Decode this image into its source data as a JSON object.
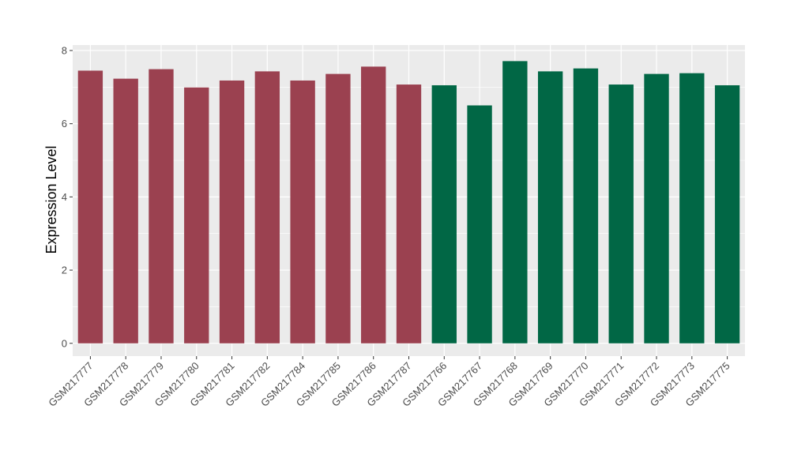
{
  "chart_data": {
    "type": "bar",
    "title": "",
    "xlabel": "",
    "ylabel": "Expression Level",
    "ylim": [
      -0.35,
      8.15
    ],
    "yticks": [
      0,
      2,
      4,
      6,
      8
    ],
    "grid": true,
    "legend": "none",
    "colors": {
      "panel_bg": "#ebebeb",
      "grid_major": "#ffffff",
      "group1": "#9b4150",
      "group2": "#016745",
      "tick_text": "#4d4d4d"
    },
    "categories": [
      "GSM217777",
      "GSM217778",
      "GSM217779",
      "GSM217780",
      "GSM217781",
      "GSM217782",
      "GSM217784",
      "GSM217785",
      "GSM217786",
      "GSM217787",
      "GSM217766",
      "GSM217767",
      "GSM217768",
      "GSM217769",
      "GSM217770",
      "GSM217771",
      "GSM217772",
      "GSM217773",
      "GSM217775"
    ],
    "values": [
      7.45,
      7.23,
      7.49,
      6.99,
      7.18,
      7.43,
      7.18,
      7.36,
      7.56,
      7.07,
      7.05,
      6.5,
      7.71,
      7.43,
      7.51,
      7.07,
      7.36,
      7.38,
      7.05
    ],
    "groups": [
      1,
      1,
      1,
      1,
      1,
      1,
      1,
      1,
      1,
      1,
      2,
      2,
      2,
      2,
      2,
      2,
      2,
      2,
      2
    ]
  }
}
